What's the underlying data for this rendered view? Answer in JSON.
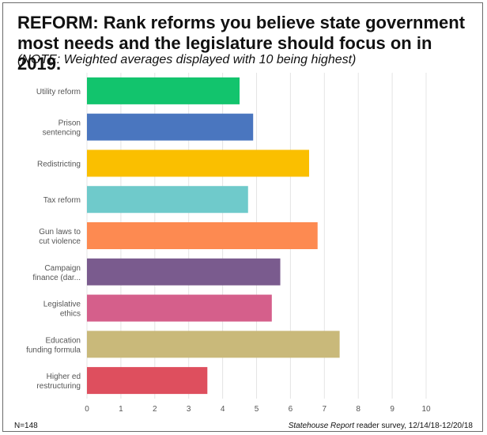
{
  "header": {
    "title": "REFORM: Rank reforms you believe state government most needs and the  legislature should focus on in 2019.",
    "note": "(NOTE: Weighted averages displayed with 10 being highest)"
  },
  "footer": {
    "sample": "N=148",
    "source_italic": "Statehouse Report",
    "source_rest": " reader survey, 12/14/18-12/20/18"
  },
  "chart_data": {
    "type": "bar",
    "orientation": "horizontal",
    "categories": [
      [
        "Utility reform"
      ],
      [
        "Prison",
        "sentencing"
      ],
      [
        "Redistricting"
      ],
      [
        "Tax reform"
      ],
      [
        "Gun laws to",
        "cut violence"
      ],
      [
        "Campaign",
        "finance (dar..."
      ],
      [
        "Legislative",
        "ethics"
      ],
      [
        "Education",
        "funding formula"
      ],
      [
        "Higher ed",
        "restructuring"
      ]
    ],
    "values": [
      4.5,
      4.9,
      6.55,
      4.75,
      6.8,
      5.7,
      5.45,
      7.45,
      3.55
    ],
    "colors": [
      "#12c46d",
      "#4a76bf",
      "#fabf00",
      "#6fcacb",
      "#fd8a51",
      "#7a5b8e",
      "#d55f8b",
      "#c9b97a",
      "#de4f5e"
    ],
    "xlim": [
      0,
      10
    ],
    "xticks": [
      0,
      1,
      2,
      3,
      4,
      5,
      6,
      7,
      8,
      9,
      10
    ],
    "grid": true,
    "legend": "none"
  }
}
